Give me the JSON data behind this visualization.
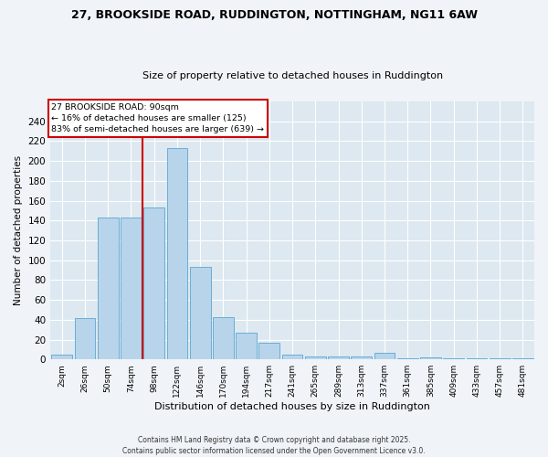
{
  "title": "27, BROOKSIDE ROAD, RUDDINGTON, NOTTINGHAM, NG11 6AW",
  "subtitle": "Size of property relative to detached houses in Ruddington",
  "xlabel": "Distribution of detached houses by size in Ruddington",
  "ylabel": "Number of detached properties",
  "bar_labels": [
    "2sqm",
    "26sqm",
    "50sqm",
    "74sqm",
    "98sqm",
    "122sqm",
    "146sqm",
    "170sqm",
    "194sqm",
    "217sqm",
    "241sqm",
    "265sqm",
    "289sqm",
    "313sqm",
    "337sqm",
    "361sqm",
    "385sqm",
    "409sqm",
    "433sqm",
    "457sqm",
    "481sqm"
  ],
  "bar_values": [
    5,
    42,
    143,
    143,
    153,
    213,
    93,
    43,
    27,
    17,
    5,
    3,
    3,
    3,
    7,
    1,
    2,
    1,
    1,
    1,
    1
  ],
  "bar_color": "#b8d4ea",
  "bar_edge_color": "#6aaed6",
  "vline_color": "#cc0000",
  "annotation_title": "27 BROOKSIDE ROAD: 90sqm",
  "annotation_line1": "← 16% of detached houses are smaller (125)",
  "annotation_line2": "83% of semi-detached houses are larger (639) →",
  "annotation_box_color": "#cc0000",
  "ylim": [
    0,
    260
  ],
  "yticks": [
    0,
    20,
    40,
    60,
    80,
    100,
    120,
    140,
    160,
    180,
    200,
    220,
    240
  ],
  "background_color": "#dde8f0",
  "grid_color": "#ffffff",
  "footer_line1": "Contains HM Land Registry data © Crown copyright and database right 2025.",
  "footer_line2": "Contains public sector information licensed under the Open Government Licence v3.0."
}
